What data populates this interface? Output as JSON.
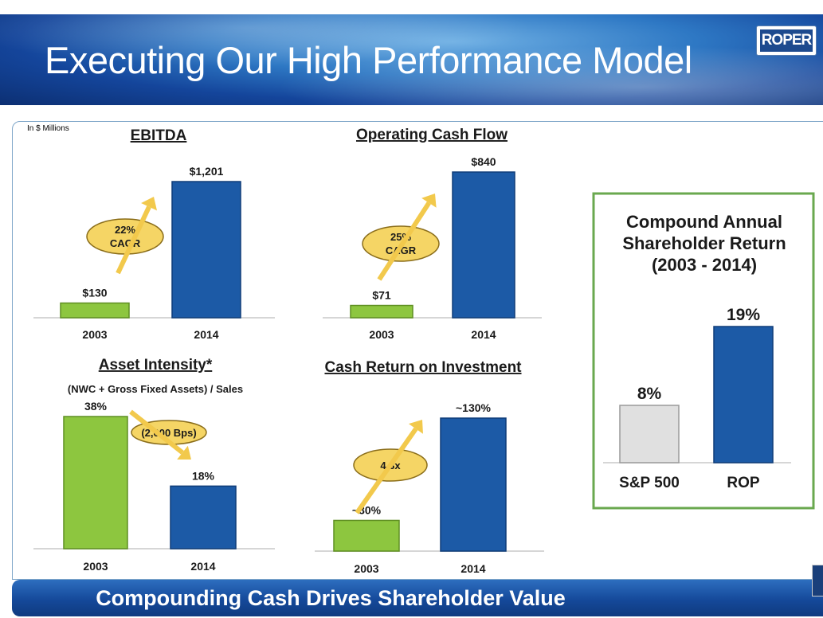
{
  "slide": {
    "title": "Executing Our High Performance Model",
    "logo_text": "ROPER",
    "units_note": "In $ Millions",
    "footer": "Compounding Cash Drives Shareholder Value"
  },
  "colors": {
    "green": "#8dc63f",
    "blue": "#1c5aa6",
    "gray": "#e0e0e0",
    "callout": "#f5d565",
    "arrow": "#f2c94c",
    "box_border": "#6aa84f"
  },
  "chart_data": [
    {
      "id": "ebitda",
      "type": "bar",
      "title": "EBITDA",
      "categories": [
        "2003",
        "2014"
      ],
      "values": [
        130,
        1201
      ],
      "labels": [
        "$130",
        "$1,201"
      ],
      "ylim": [
        0,
        1300
      ],
      "annotation": {
        "line1": "22%",
        "line2": "CAGR"
      }
    },
    {
      "id": "ocf",
      "type": "bar",
      "title": "Operating Cash Flow",
      "categories": [
        "2003",
        "2014"
      ],
      "values": [
        71,
        840
      ],
      "labels": [
        "$71",
        "$840"
      ],
      "ylim": [
        0,
        900
      ],
      "annotation": {
        "line1": "25%",
        "line2": "CAGR"
      }
    },
    {
      "id": "asset",
      "type": "bar",
      "title": "Asset Intensity*",
      "subtitle": "(NWC + Gross Fixed Assets) / Sales",
      "categories": [
        "2003",
        "2014"
      ],
      "values": [
        38,
        18
      ],
      "labels": [
        "38%",
        "18%"
      ],
      "ylim": [
        0,
        40
      ],
      "annotation": {
        "line1": "(2,000 Bps)",
        "line2": ""
      }
    },
    {
      "id": "croi",
      "type": "bar",
      "title": "Cash Return on Investment",
      "categories": [
        "2003",
        "2014"
      ],
      "values": [
        30,
        130
      ],
      "labels": [
        "~30%",
        "~130%"
      ],
      "ylim": [
        0,
        140
      ],
      "annotation": {
        "line1": "4.3x",
        "line2": ""
      }
    },
    {
      "id": "tsr",
      "type": "bar",
      "title": [
        "Compound Annual",
        "Shareholder Return",
        "(2003 - 2014)"
      ],
      "categories": [
        "S&P 500",
        "ROP"
      ],
      "values": [
        8,
        19
      ],
      "labels": [
        "8%",
        "19%"
      ],
      "ylim": [
        0,
        21
      ]
    }
  ]
}
